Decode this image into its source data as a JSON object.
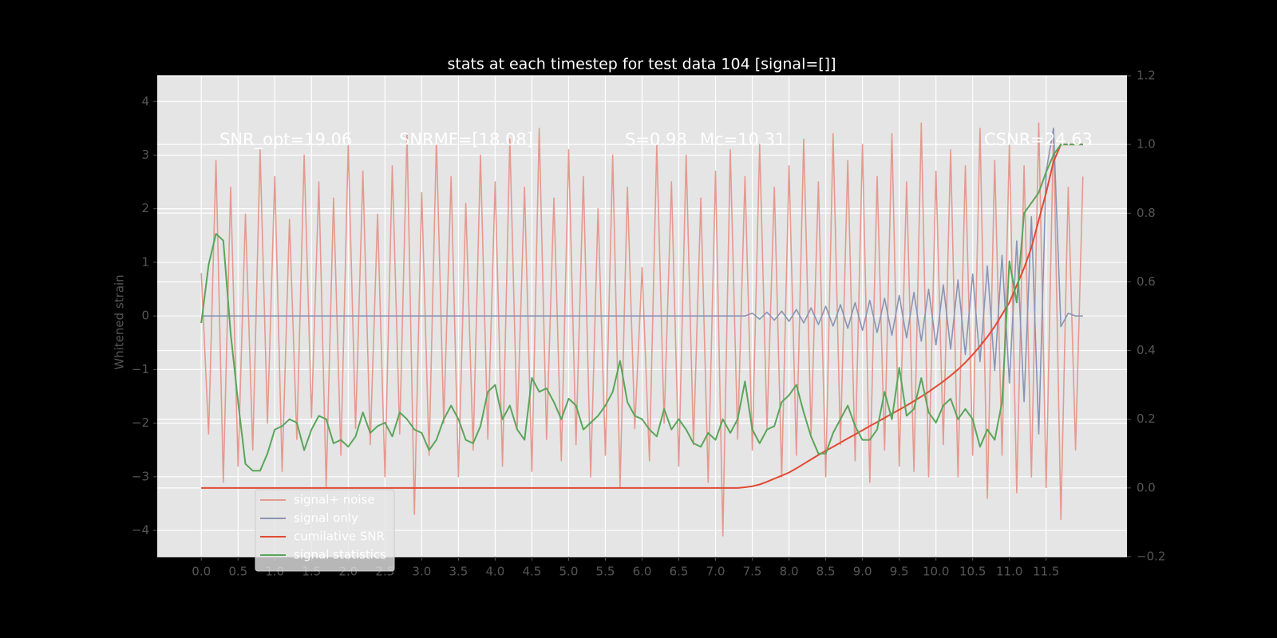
{
  "chart_data": {
    "type": "line",
    "title": "stats at each timestep for test data 104 [signal=[]]",
    "ylabel": "Whitened strain",
    "annotations": [
      "SNR_opt=19.06",
      "SNRMF=[18.08]",
      "S=0.98",
      "Mc=10.31",
      "CSNR=24.63"
    ],
    "legend": "lower left",
    "grid": true,
    "xlim": [
      -0.6,
      12.6
    ],
    "ylim": [
      -4.49,
      4.48
    ],
    "y2lim": [
      -0.2,
      1.2
    ],
    "xticks": [
      {
        "value": 0,
        "label": "0.0"
      },
      0.5,
      {
        "value": 1,
        "label": "1.0"
      },
      1.5,
      {
        "value": 2,
        "label": "2.0"
      },
      2.5,
      {
        "value": 3,
        "label": "3.0"
      },
      3.5,
      {
        "value": 4,
        "label": "4.0"
      },
      4.5,
      {
        "value": 5,
        "label": "5.0"
      },
      5.5,
      {
        "value": 6,
        "label": "6.0"
      },
      6.5,
      {
        "value": 7,
        "label": "7.0"
      },
      7.5,
      {
        "value": 8,
        "label": "8.0"
      },
      8.5,
      {
        "value": 9,
        "label": "9.0"
      },
      9.5,
      {
        "value": 10,
        "label": "10.0"
      },
      10.5,
      {
        "value": 11,
        "label": "11.0"
      },
      11.5
    ],
    "yticks": [
      {
        "value": -4,
        "label": "−4"
      },
      {
        "value": -3,
        "label": "−3"
      },
      {
        "value": -2,
        "label": "−2"
      },
      {
        "value": -1,
        "label": "−1"
      },
      0,
      1,
      2,
      3,
      4
    ],
    "y2ticks": [
      {
        "value": -0.2,
        "label": "−0.2"
      },
      {
        "value": 0,
        "label": "0.0"
      },
      0.2,
      0.4,
      0.6,
      0.8,
      {
        "value": 1,
        "label": "1.0"
      },
      1.2
    ],
    "x": [
      0,
      0.1,
      0.2,
      0.3,
      0.4,
      0.5,
      0.6,
      0.7,
      0.8,
      0.9,
      1,
      1.1,
      1.2,
      1.3,
      1.4,
      1.5,
      1.6,
      1.7,
      1.8,
      1.9,
      2,
      2.1,
      2.2,
      2.3,
      2.4,
      2.5,
      2.6,
      2.7,
      2.8,
      2.9,
      3,
      3.1,
      3.2,
      3.3,
      3.4,
      3.5,
      3.6,
      3.7,
      3.8,
      3.9,
      4,
      4.1,
      4.2,
      4.3,
      4.4,
      4.5,
      4.6,
      4.7,
      4.8,
      4.9,
      5,
      5.1,
      5.2,
      5.3,
      5.4,
      5.5,
      5.6,
      5.7,
      5.8,
      5.9,
      6,
      6.1,
      6.2,
      6.3,
      6.4,
      6.5,
      6.6,
      6.7,
      6.8,
      6.9,
      7,
      7.1,
      7.2,
      7.3,
      7.4,
      7.5,
      7.6,
      7.7,
      7.8,
      7.9,
      8,
      8.1,
      8.2,
      8.3,
      8.4,
      8.5,
      8.6,
      8.7,
      8.8,
      8.9,
      9,
      9.1,
      9.2,
      9.3,
      9.4,
      9.5,
      9.6,
      9.7,
      9.8,
      9.9,
      10,
      10.1,
      10.2,
      10.3,
      10.4,
      10.5,
      10.6,
      10.7,
      10.8,
      10.9,
      11,
      11.1,
      11.2,
      11.3,
      11.4,
      11.5,
      11.6,
      11.7,
      11.8,
      11.9,
      12
    ],
    "series": [
      {
        "name": "signal+ noise",
        "color": "#e5998f",
        "values": [
          0.8,
          -2.2,
          2.9,
          -3.1,
          2.4,
          -2.8,
          1.9,
          -2.5,
          3.1,
          -2.0,
          2.6,
          -2.9,
          1.8,
          -2.3,
          3.0,
          -1.9,
          2.5,
          -3.2,
          2.2,
          -2.6,
          3.2,
          -2.1,
          2.7,
          -2.4,
          1.9,
          -3.0,
          2.8,
          -2.2,
          3.4,
          -3.7,
          2.3,
          -2.6,
          3.3,
          -2.0,
          2.6,
          -3.0,
          2.1,
          -2.5,
          3.0,
          -2.3,
          2.5,
          -2.8,
          3.3,
          -2.1,
          2.4,
          -2.9,
          3.5,
          -2.3,
          2.2,
          -2.7,
          3.1,
          -2.4,
          2.6,
          -3.0,
          2.0,
          -2.6,
          3.0,
          -3.2,
          2.4,
          -2.1,
          0.9,
          -2.7,
          3.2,
          -2.0,
          2.5,
          -2.8,
          3.0,
          -2.4,
          2.2,
          -3.1,
          2.7,
          -4.1,
          3.1,
          -2.3,
          2.6,
          -2.5,
          3.2,
          -2.1,
          2.4,
          -3.0,
          2.8,
          -2.6,
          3.3,
          -2.2,
          2.5,
          -3.0,
          3.4,
          -2.4,
          2.9,
          -2.7,
          3.2,
          -3.1,
          2.6,
          -2.5,
          3.4,
          -2.8,
          2.5,
          -2.9,
          3.6,
          -3.0,
          2.7,
          -2.4,
          3.1,
          -3.0,
          2.8,
          -2.6,
          3.5,
          -3.4,
          2.9,
          -2.6,
          3.2,
          -3.3,
          2.8,
          -3.0,
          3.6,
          -3.2,
          3.5,
          -3.8,
          2.4,
          -2.5,
          2.6
        ]
      },
      {
        "name": "signal only",
        "color": "#8a94b4",
        "values": [
          0,
          0,
          0,
          0,
          0,
          0,
          0,
          0,
          0,
          0,
          0,
          0,
          0,
          0,
          0,
          0,
          0,
          0,
          0,
          0,
          0,
          0,
          0,
          0,
          0,
          0,
          0,
          0,
          0,
          0,
          0,
          0,
          0,
          0,
          0,
          0,
          0,
          0,
          0,
          0,
          0,
          0,
          0,
          0,
          0,
          0,
          0,
          0,
          0,
          0,
          0,
          0,
          0,
          0,
          0,
          0,
          0,
          0,
          0,
          0,
          0,
          0,
          0,
          0,
          0,
          0,
          0,
          0,
          0,
          0,
          0,
          0,
          0,
          0,
          0,
          0.05,
          -0.06,
          0.07,
          -0.08,
          0.09,
          -0.1,
          0.12,
          -0.13,
          0.15,
          -0.16,
          0.18,
          -0.19,
          0.21,
          -0.23,
          0.25,
          -0.27,
          0.29,
          -0.31,
          0.33,
          -0.36,
          0.38,
          -0.41,
          0.44,
          -0.47,
          0.5,
          -0.54,
          0.58,
          -0.62,
          0.67,
          -0.72,
          0.78,
          -0.85,
          0.93,
          -1.02,
          1.13,
          -1.25,
          1.4,
          -1.6,
          1.85,
          -2.2,
          2.7,
          3.5,
          -0.2,
          0.05,
          0,
          0
        ]
      },
      {
        "name": "cumilative SNR",
        "color": "#e24a33",
        "axis": "y2",
        "values": [
          0,
          0,
          0,
          0,
          0,
          0,
          0,
          0,
          0,
          0,
          0,
          0,
          0,
          0,
          0,
          0,
          0,
          0,
          0,
          0,
          0,
          0,
          0,
          0,
          0,
          0,
          0,
          0,
          0,
          0,
          0,
          0,
          0,
          0,
          0,
          0,
          0,
          0,
          0,
          0,
          0,
          0,
          0,
          0,
          0,
          0,
          0,
          0,
          0,
          0,
          0,
          0,
          0,
          0,
          0,
          0,
          0,
          0,
          0,
          0,
          0,
          0,
          0,
          0,
          0,
          0,
          0,
          0,
          0,
          0,
          0,
          0,
          0,
          0,
          0.002,
          0.005,
          0.01,
          0.018,
          0.027,
          0.036,
          0.045,
          0.057,
          0.07,
          0.083,
          0.096,
          0.108,
          0.12,
          0.132,
          0.144,
          0.156,
          0.168,
          0.18,
          0.192,
          0.204,
          0.216,
          0.228,
          0.24,
          0.253,
          0.266,
          0.28,
          0.295,
          0.31,
          0.327,
          0.345,
          0.365,
          0.388,
          0.413,
          0.44,
          0.47,
          0.505,
          0.54,
          0.59,
          0.64,
          0.7,
          0.78,
          0.86,
          0.95,
          1.0,
          1.0,
          1.0,
          1.0
        ]
      },
      {
        "name": "signal statistics",
        "color": "#5aa55a",
        "axis": "y2",
        "values": [
          0.48,
          0.65,
          0.74,
          0.72,
          0.45,
          0.25,
          0.07,
          0.05,
          0.05,
          0.1,
          0.17,
          0.18,
          0.2,
          0.19,
          0.11,
          0.17,
          0.21,
          0.2,
          0.13,
          0.14,
          0.12,
          0.15,
          0.22,
          0.16,
          0.18,
          0.19,
          0.15,
          0.22,
          0.2,
          0.17,
          0.16,
          0.11,
          0.14,
          0.2,
          0.24,
          0.2,
          0.14,
          0.13,
          0.18,
          0.28,
          0.3,
          0.2,
          0.24,
          0.17,
          0.14,
          0.32,
          0.28,
          0.29,
          0.25,
          0.2,
          0.26,
          0.24,
          0.17,
          0.19,
          0.21,
          0.24,
          0.28,
          0.37,
          0.25,
          0.21,
          0.2,
          0.17,
          0.15,
          0.23,
          0.17,
          0.2,
          0.17,
          0.13,
          0.12,
          0.16,
          0.14,
          0.2,
          0.16,
          0.2,
          0.31,
          0.17,
          0.13,
          0.17,
          0.18,
          0.25,
          0.27,
          0.3,
          0.22,
          0.15,
          0.1,
          0.1,
          0.16,
          0.2,
          0.24,
          0.18,
          0.14,
          0.14,
          0.17,
          0.28,
          0.2,
          0.35,
          0.21,
          0.23,
          0.32,
          0.22,
          0.19,
          0.24,
          0.26,
          0.2,
          0.23,
          0.2,
          0.12,
          0.17,
          0.14,
          0.25,
          0.66,
          0.54,
          0.8,
          0.83,
          0.86,
          0.92,
          0.97,
          1.0,
          1.0,
          1.0,
          1.0
        ]
      }
    ]
  }
}
